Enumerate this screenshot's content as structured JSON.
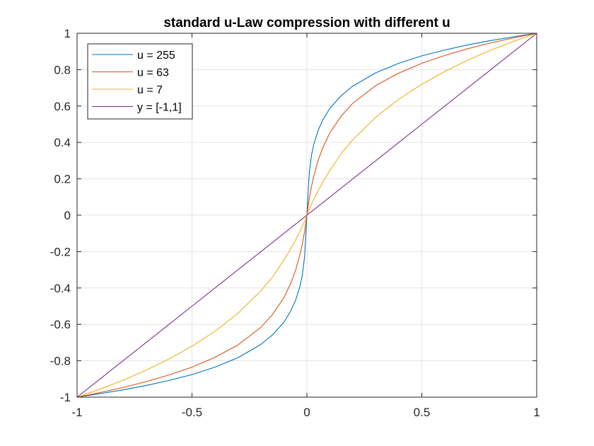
{
  "chart_data": {
    "type": "line",
    "title": "standard u-Law compression with different u",
    "xlabel": "",
    "ylabel": "",
    "xlim": [
      -1,
      1
    ],
    "ylim": [
      -1,
      1
    ],
    "xticks": [
      -1,
      -0.5,
      0,
      0.5,
      1
    ],
    "xtick_labels": [
      "-1",
      "-0.5",
      "0",
      "0.5",
      "1"
    ],
    "yticks": [
      -1,
      -0.8,
      -0.6,
      -0.4,
      -0.2,
      0,
      0.2,
      0.4,
      0.6,
      0.8,
      1
    ],
    "ytick_labels": [
      "-1",
      "-0.8",
      "-0.6",
      "-0.4",
      "-0.2",
      "0",
      "0.2",
      "0.4",
      "0.6",
      "0.8",
      "1"
    ],
    "grid": true,
    "legend_position": "top-left",
    "x": [
      -1,
      -0.9,
      -0.8,
      -0.7,
      -0.6,
      -0.5,
      -0.4,
      -0.3,
      -0.2,
      -0.15,
      -0.1,
      -0.07,
      -0.05,
      -0.03,
      -0.02,
      -0.01,
      0,
      0.01,
      0.02,
      0.03,
      0.05,
      0.07,
      0.1,
      0.15,
      0.2,
      0.3,
      0.4,
      0.5,
      0.6,
      0.7,
      0.8,
      0.9,
      1
    ],
    "series": [
      {
        "name": "u = 255",
        "color": "#0072BD",
        "values": [
          -1,
          -0.981,
          -0.96,
          -0.936,
          -0.908,
          -0.876,
          -0.835,
          -0.783,
          -0.71,
          -0.658,
          -0.588,
          -0.525,
          -0.47,
          -0.39,
          -0.33,
          -0.228,
          0,
          0.228,
          0.33,
          0.39,
          0.47,
          0.525,
          0.588,
          0.658,
          0.71,
          0.783,
          0.835,
          0.876,
          0.908,
          0.936,
          0.96,
          0.981,
          1
        ]
      },
      {
        "name": "u = 63",
        "color": "#D95319",
        "values": [
          -1,
          -0.975,
          -0.947,
          -0.915,
          -0.878,
          -0.835,
          -0.781,
          -0.713,
          -0.616,
          -0.546,
          -0.453,
          -0.373,
          -0.306,
          -0.215,
          -0.158,
          -0.089,
          0,
          0.089,
          0.158,
          0.215,
          0.306,
          0.373,
          0.453,
          0.546,
          0.616,
          0.713,
          0.781,
          0.835,
          0.878,
          0.915,
          0.947,
          0.975,
          1
        ]
      },
      {
        "name": "u = 7",
        "color": "#EDB120",
        "values": [
          -1,
          -0.956,
          -0.907,
          -0.852,
          -0.79,
          -0.72,
          -0.638,
          -0.539,
          -0.415,
          -0.34,
          -0.246,
          -0.184,
          -0.138,
          -0.088,
          -0.061,
          -0.032,
          0,
          0.032,
          0.061,
          0.088,
          0.138,
          0.184,
          0.246,
          0.34,
          0.415,
          0.539,
          0.638,
          0.72,
          0.79,
          0.852,
          0.907,
          0.956,
          1
        ]
      },
      {
        "name": "y = [-1,1]",
        "color": "#7E2F8E",
        "values": [
          -1,
          -0.9,
          -0.8,
          -0.7,
          -0.6,
          -0.5,
          -0.4,
          -0.3,
          -0.2,
          -0.15,
          -0.1,
          -0.07,
          -0.05,
          -0.03,
          -0.02,
          -0.01,
          0,
          0.01,
          0.02,
          0.03,
          0.05,
          0.07,
          0.1,
          0.15,
          0.2,
          0.3,
          0.4,
          0.5,
          0.6,
          0.7,
          0.8,
          0.9,
          1
        ]
      }
    ]
  }
}
